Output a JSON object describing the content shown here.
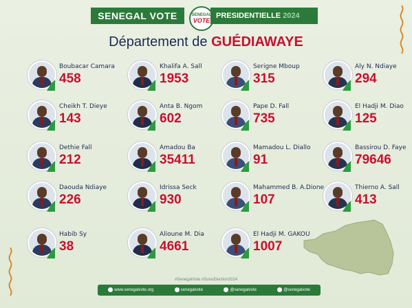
{
  "header": {
    "brand": "SENEGAL VOTE",
    "logo_line1": "SENEGAL",
    "logo_line2": "VOTE",
    "election": "PRESIDENTIELLE",
    "year": "2024"
  },
  "title": {
    "prefix": "Département de",
    "department": "GUÉDIAWAYE"
  },
  "candidates": [
    {
      "name": "Boubacar Camara",
      "votes": "458"
    },
    {
      "name": "Khalifa A. Sall",
      "votes": "1953"
    },
    {
      "name": "Serigne Mboup",
      "votes": "315"
    },
    {
      "name": "Aly N. Ndiaye",
      "votes": "294"
    },
    {
      "name": "Cheikh T. Dieye",
      "votes": "143"
    },
    {
      "name": "Anta B. Ngom",
      "votes": "602"
    },
    {
      "name": "Pape D. Fall",
      "votes": "735"
    },
    {
      "name": "El Hadji M. Diao",
      "votes": "125"
    },
    {
      "name": "Dethie Fall",
      "votes": "212"
    },
    {
      "name": "Amadou Ba",
      "votes": "35411"
    },
    {
      "name": "Mamadou L. Diallo",
      "votes": "91"
    },
    {
      "name": "Bassirou D. Faye",
      "votes": "79646"
    },
    {
      "name": "Daouda Ndiaye",
      "votes": "226"
    },
    {
      "name": "Idrissa Seck",
      "votes": "930"
    },
    {
      "name": "Mahammed B. A.Dione",
      "votes": "107"
    },
    {
      "name": "Thierno A. Sall",
      "votes": "413"
    },
    {
      "name": "Habib Sy",
      "votes": "38"
    },
    {
      "name": "Alioune M. Dia",
      "votes": "4661"
    },
    {
      "name": "El Hadji M. GAKOU",
      "votes": "1007"
    }
  ],
  "footer": {
    "hashtags": "#SenegalVote  #SunuElection2024",
    "website": "www.senegalvote.org",
    "facebook": "senegalvote",
    "instagram": "@senegalvote",
    "twitter": "@senegalvote"
  },
  "colors": {
    "accent_green": "#2c7a3a",
    "vote_red": "#c8102e",
    "name_navy": "#1d2a52"
  }
}
